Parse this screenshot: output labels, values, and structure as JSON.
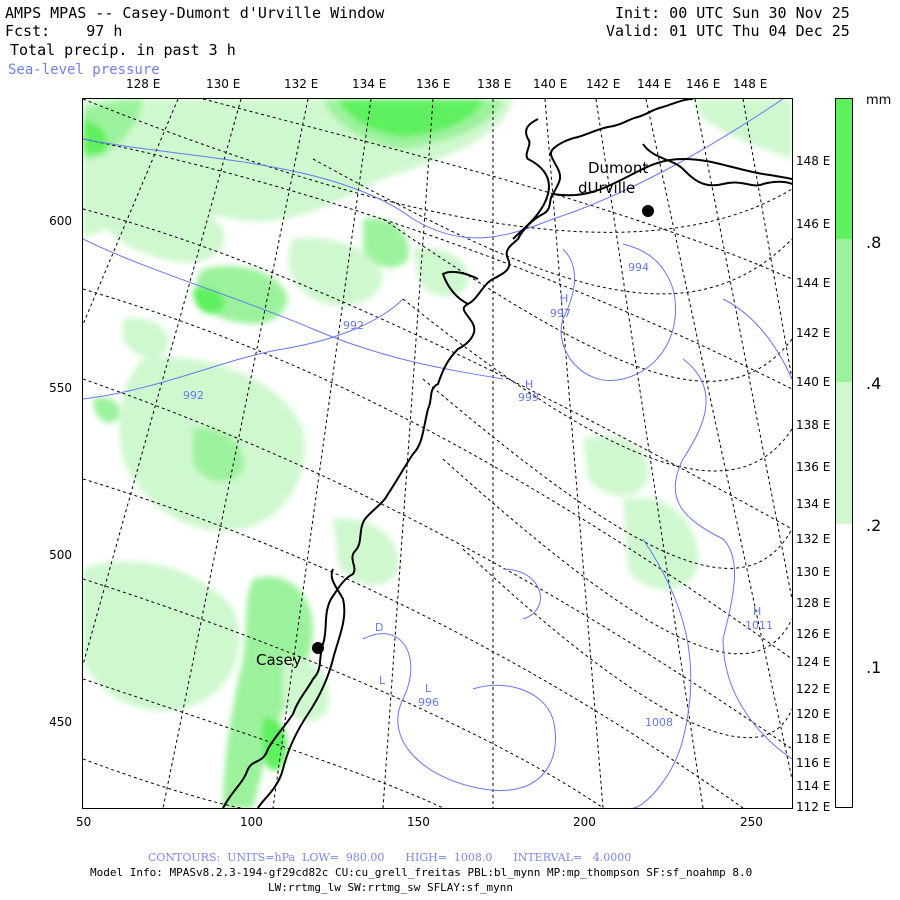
{
  "header": {
    "title": "AMPS MPAS -- Casey-Dumont d'Urville Window",
    "fcst_label": "Fcst:",
    "fcst_value": "97 h",
    "field1": "Total precip. in past 3 h",
    "field2": "Sea-level pressure",
    "init": "Init: 00 UTC Sun 30 Nov 25",
    "valid": "Valid: 01 UTC Thu 04 Dec 25"
  },
  "axes": {
    "left_ticks": [
      "600",
      "550",
      "500",
      "450"
    ],
    "bottom_ticks": [
      "50",
      "100",
      "150",
      "200",
      "250"
    ],
    "top_ticks": [
      "128 E",
      "130 E",
      "132 E",
      "134 E",
      "136 E",
      "138 E",
      "140 E",
      "142 E",
      "144 E",
      "146 E",
      "148 E"
    ],
    "right_ticks": [
      "148 E",
      "146 E",
      "144 E",
      "142 E",
      "140 E",
      "138 E",
      "136 E",
      "134 E",
      "132 E",
      "130 E",
      "128 E",
      "126 E",
      "124 E",
      "122 E",
      "120 E",
      "118 E",
      "116 E",
      "114 E",
      "112 E"
    ]
  },
  "colorbar": {
    "unit": "mm",
    "labels": [
      ".8",
      ".4",
      ".2",
      ".1"
    ],
    "colors": [
      "#5ef05e",
      "#9cf29c",
      "#cff8cf",
      "#ffffff"
    ]
  },
  "map": {
    "stations": [
      {
        "name": "Casey"
      },
      {
        "name_line1": "Dumont",
        "name_line2": "dUrville"
      }
    ],
    "pressure_labels": [
      "992",
      "992",
      "994",
      "997",
      "999",
      "996",
      "1011",
      "1008"
    ],
    "pressure_centers": [
      "H",
      "H",
      "H",
      "L",
      "L",
      "D"
    ],
    "contour_color": "#6677ee",
    "coast_color": "#000000"
  },
  "footer": {
    "contours": "CONTOURS:  UNITS=hPa  LOW=  980.00      HIGH=  1008.0      INTERVAL=   4.0000",
    "model_info": "Model Info: MPASv8.2.3-194-gf29cd82c CU:cu_grell_freitas PBL:bl_mynn MP:mp_thompson SF:sf_noahmp 8.0",
    "model_info2": "LW:rrtmg_lw SW:rrtmg_sw SFLAY:sf_mynn"
  }
}
